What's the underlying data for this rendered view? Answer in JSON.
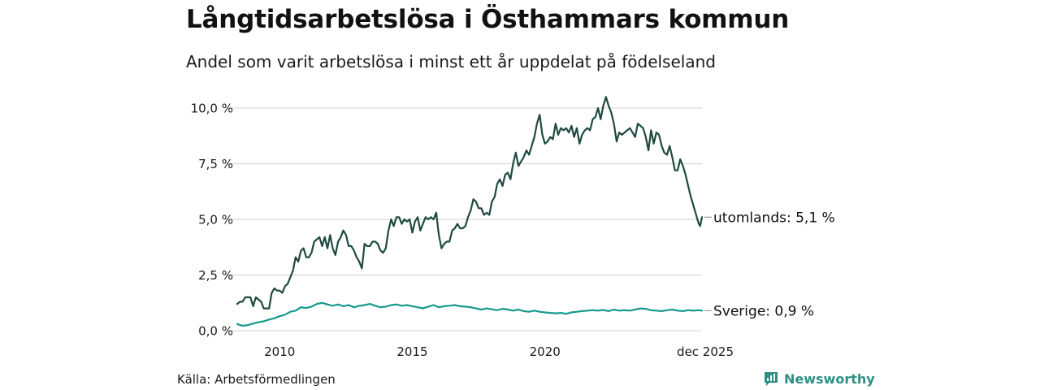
{
  "header": {
    "title": "Långtidsarbetslösa i Östhammars kommun",
    "subtitle": "Andel som varit arbetslösa i minst ett år uppdelat på födelseland"
  },
  "footer": {
    "source": "Källa: Arbetsförmedlingen",
    "brand": "Newsworthy"
  },
  "colors": {
    "series_utomlands": "#1f4a3f",
    "series_sverige": "#159a8c",
    "grid": "#d9d9d9",
    "brand": "#2f8f83"
  },
  "chart_data": {
    "type": "line",
    "title": "Långtidsarbetslösa i Östhammars kommun",
    "subtitle": "Andel som varit arbetslösa i minst ett år uppdelat på födelseland",
    "xlabel": "",
    "ylabel": "",
    "xlim": [
      2008.4,
      2025.92
    ],
    "ylim": [
      0,
      10.7
    ],
    "grid": true,
    "y_ticks": [
      {
        "value": 0,
        "label": "0,0 %"
      },
      {
        "value": 2.5,
        "label": "2,5 %"
      },
      {
        "value": 5,
        "label": "5,0 %"
      },
      {
        "value": 7.5,
        "label": "7,5 %"
      },
      {
        "value": 10,
        "label": "10,0 %"
      }
    ],
    "x_ticks": [
      {
        "value": 2010,
        "label": "2010"
      },
      {
        "value": 2015,
        "label": "2015"
      },
      {
        "value": 2020,
        "label": "2020"
      },
      {
        "value": 2025.92,
        "label": "dec 2025"
      }
    ],
    "series": [
      {
        "name": "utomlands",
        "end_label": "utomlands: 5,1 %",
        "points": [
          [
            2008.4,
            1.2
          ],
          [
            2008.5,
            1.3
          ],
          [
            2008.6,
            1.3
          ],
          [
            2008.7,
            1.5
          ],
          [
            2008.8,
            1.5
          ],
          [
            2008.9,
            1.5
          ],
          [
            2009.0,
            1.1
          ],
          [
            2009.1,
            1.5
          ],
          [
            2009.2,
            1.4
          ],
          [
            2009.3,
            1.3
          ],
          [
            2009.4,
            1.0
          ],
          [
            2009.5,
            1.0
          ],
          [
            2009.6,
            1.0
          ],
          [
            2009.7,
            1.7
          ],
          [
            2009.8,
            1.9
          ],
          [
            2009.9,
            1.8
          ],
          [
            2010.0,
            1.8
          ],
          [
            2010.1,
            1.7
          ],
          [
            2010.2,
            2.0
          ],
          [
            2010.3,
            2.1
          ],
          [
            2010.4,
            2.4
          ],
          [
            2010.5,
            2.7
          ],
          [
            2010.6,
            3.3
          ],
          [
            2010.7,
            3.1
          ],
          [
            2010.8,
            3.6
          ],
          [
            2010.9,
            3.7
          ],
          [
            2011.0,
            3.3
          ],
          [
            2011.1,
            3.3
          ],
          [
            2011.2,
            3.5
          ],
          [
            2011.3,
            4.0
          ],
          [
            2011.4,
            4.1
          ],
          [
            2011.5,
            4.2
          ],
          [
            2011.6,
            3.8
          ],
          [
            2011.7,
            4.2
          ],
          [
            2011.8,
            3.7
          ],
          [
            2011.9,
            4.3
          ],
          [
            2012.0,
            3.7
          ],
          [
            2012.1,
            3.4
          ],
          [
            2012.2,
            4.0
          ],
          [
            2012.3,
            4.2
          ],
          [
            2012.4,
            4.5
          ],
          [
            2012.5,
            4.3
          ],
          [
            2012.6,
            3.8
          ],
          [
            2012.7,
            3.8
          ],
          [
            2012.8,
            3.6
          ],
          [
            2012.9,
            3.3
          ],
          [
            2013.0,
            3.1
          ],
          [
            2013.1,
            2.8
          ],
          [
            2013.2,
            3.9
          ],
          [
            2013.3,
            3.8
          ],
          [
            2013.4,
            3.8
          ],
          [
            2013.5,
            4.0
          ],
          [
            2013.6,
            4.0
          ],
          [
            2013.7,
            3.9
          ],
          [
            2013.8,
            3.6
          ],
          [
            2013.9,
            3.5
          ],
          [
            2014.0,
            3.7
          ],
          [
            2014.1,
            4.5
          ],
          [
            2014.2,
            5.0
          ],
          [
            2014.3,
            4.7
          ],
          [
            2014.4,
            5.1
          ],
          [
            2014.5,
            5.1
          ],
          [
            2014.6,
            4.8
          ],
          [
            2014.7,
            5.0
          ],
          [
            2014.8,
            4.9
          ],
          [
            2014.9,
            5.0
          ],
          [
            2015.0,
            4.4
          ],
          [
            2015.1,
            4.9
          ],
          [
            2015.2,
            5.1
          ],
          [
            2015.3,
            4.5
          ],
          [
            2015.4,
            4.8
          ],
          [
            2015.5,
            5.1
          ],
          [
            2015.6,
            5.0
          ],
          [
            2015.7,
            5.1
          ],
          [
            2015.8,
            5.0
          ],
          [
            2015.9,
            5.3
          ],
          [
            2016.0,
            4.3
          ],
          [
            2016.1,
            3.7
          ],
          [
            2016.2,
            3.9
          ],
          [
            2016.3,
            4.0
          ],
          [
            2016.4,
            4.0
          ],
          [
            2016.5,
            4.5
          ],
          [
            2016.6,
            4.6
          ],
          [
            2016.7,
            4.8
          ],
          [
            2016.8,
            4.6
          ],
          [
            2016.9,
            4.6
          ],
          [
            2017.0,
            4.7
          ],
          [
            2017.1,
            5.1
          ],
          [
            2017.2,
            5.4
          ],
          [
            2017.3,
            5.9
          ],
          [
            2017.4,
            5.8
          ],
          [
            2017.5,
            5.5
          ],
          [
            2017.6,
            5.5
          ],
          [
            2017.7,
            5.2
          ],
          [
            2017.8,
            5.3
          ],
          [
            2017.9,
            5.2
          ],
          [
            2018.0,
            5.8
          ],
          [
            2018.1,
            6.0
          ],
          [
            2018.2,
            6.6
          ],
          [
            2018.3,
            6.8
          ],
          [
            2018.4,
            6.5
          ],
          [
            2018.5,
            7.0
          ],
          [
            2018.6,
            7.1
          ],
          [
            2018.7,
            6.8
          ],
          [
            2018.8,
            7.5
          ],
          [
            2018.9,
            8.0
          ],
          [
            2019.0,
            7.4
          ],
          [
            2019.1,
            7.6
          ],
          [
            2019.2,
            7.8
          ],
          [
            2019.3,
            8.1
          ],
          [
            2019.4,
            7.9
          ],
          [
            2019.5,
            8.3
          ],
          [
            2019.6,
            8.7
          ],
          [
            2019.7,
            9.3
          ],
          [
            2019.8,
            9.7
          ],
          [
            2019.9,
            8.8
          ],
          [
            2020.0,
            8.4
          ],
          [
            2020.1,
            8.5
          ],
          [
            2020.2,
            8.7
          ],
          [
            2020.3,
            8.6
          ],
          [
            2020.4,
            9.3
          ],
          [
            2020.5,
            8.8
          ],
          [
            2020.6,
            9.1
          ],
          [
            2020.7,
            9.0
          ],
          [
            2020.8,
            9.1
          ],
          [
            2020.9,
            8.9
          ],
          [
            2021.0,
            9.2
          ],
          [
            2021.1,
            8.7
          ],
          [
            2021.2,
            9.1
          ],
          [
            2021.3,
            8.4
          ],
          [
            2021.4,
            8.8
          ],
          [
            2021.5,
            9.0
          ],
          [
            2021.6,
            9.1
          ],
          [
            2021.7,
            9.0
          ],
          [
            2021.8,
            9.5
          ],
          [
            2021.9,
            9.6
          ],
          [
            2022.0,
            10.0
          ],
          [
            2022.1,
            9.5
          ],
          [
            2022.2,
            10.1
          ],
          [
            2022.3,
            10.5
          ],
          [
            2022.4,
            10.1
          ],
          [
            2022.5,
            9.8
          ],
          [
            2022.6,
            9.3
          ],
          [
            2022.7,
            8.5
          ],
          [
            2022.8,
            8.9
          ],
          [
            2022.9,
            8.8
          ],
          [
            2023.0,
            8.9
          ],
          [
            2023.1,
            9.0
          ],
          [
            2023.2,
            9.1
          ],
          [
            2023.3,
            8.9
          ],
          [
            2023.4,
            8.7
          ],
          [
            2023.5,
            9.3
          ],
          [
            2023.6,
            9.2
          ],
          [
            2023.7,
            9.1
          ],
          [
            2023.8,
            8.7
          ],
          [
            2023.9,
            8.1
          ],
          [
            2024.0,
            9.0
          ],
          [
            2024.1,
            8.4
          ],
          [
            2024.2,
            8.9
          ],
          [
            2024.3,
            8.8
          ],
          [
            2024.4,
            8.3
          ],
          [
            2024.5,
            8.0
          ],
          [
            2024.6,
            7.9
          ],
          [
            2024.7,
            8.3
          ],
          [
            2024.8,
            7.8
          ],
          [
            2024.9,
            7.2
          ],
          [
            2025.0,
            7.2
          ],
          [
            2025.1,
            7.7
          ],
          [
            2025.2,
            7.4
          ],
          [
            2025.3,
            7.0
          ],
          [
            2025.4,
            6.5
          ],
          [
            2025.5,
            6.0
          ],
          [
            2025.6,
            5.6
          ],
          [
            2025.7,
            5.2
          ],
          [
            2025.75,
            5.0
          ],
          [
            2025.8,
            4.8
          ],
          [
            2025.85,
            4.7
          ],
          [
            2025.92,
            5.1
          ]
        ]
      },
      {
        "name": "Sverige",
        "end_label": "Sverige: 0,9 %",
        "points": [
          [
            2008.4,
            0.3
          ],
          [
            2008.6,
            0.22
          ],
          [
            2008.8,
            0.25
          ],
          [
            2009.0,
            0.32
          ],
          [
            2009.2,
            0.38
          ],
          [
            2009.4,
            0.42
          ],
          [
            2009.6,
            0.5
          ],
          [
            2009.8,
            0.56
          ],
          [
            2010.0,
            0.65
          ],
          [
            2010.2,
            0.72
          ],
          [
            2010.4,
            0.85
          ],
          [
            2010.6,
            0.9
          ],
          [
            2010.8,
            1.05
          ],
          [
            2011.0,
            1.02
          ],
          [
            2011.2,
            1.08
          ],
          [
            2011.4,
            1.2
          ],
          [
            2011.6,
            1.25
          ],
          [
            2011.8,
            1.18
          ],
          [
            2012.0,
            1.12
          ],
          [
            2012.2,
            1.18
          ],
          [
            2012.4,
            1.1
          ],
          [
            2012.6,
            1.15
          ],
          [
            2012.8,
            1.05
          ],
          [
            2013.0,
            1.12
          ],
          [
            2013.2,
            1.15
          ],
          [
            2013.4,
            1.2
          ],
          [
            2013.6,
            1.12
          ],
          [
            2013.8,
            1.05
          ],
          [
            2014.0,
            1.08
          ],
          [
            2014.2,
            1.15
          ],
          [
            2014.4,
            1.18
          ],
          [
            2014.6,
            1.12
          ],
          [
            2014.8,
            1.15
          ],
          [
            2015.0,
            1.1
          ],
          [
            2015.2,
            1.05
          ],
          [
            2015.4,
            1.0
          ],
          [
            2015.6,
            1.08
          ],
          [
            2015.8,
            1.15
          ],
          [
            2016.0,
            1.05
          ],
          [
            2016.2,
            1.1
          ],
          [
            2016.4,
            1.12
          ],
          [
            2016.6,
            1.15
          ],
          [
            2016.8,
            1.1
          ],
          [
            2017.0,
            1.08
          ],
          [
            2017.2,
            1.05
          ],
          [
            2017.4,
            1.0
          ],
          [
            2017.6,
            0.95
          ],
          [
            2017.8,
            1.0
          ],
          [
            2018.0,
            0.96
          ],
          [
            2018.2,
            0.92
          ],
          [
            2018.4,
            0.98
          ],
          [
            2018.6,
            0.95
          ],
          [
            2018.8,
            0.9
          ],
          [
            2019.0,
            0.95
          ],
          [
            2019.2,
            0.88
          ],
          [
            2019.4,
            0.85
          ],
          [
            2019.6,
            0.9
          ],
          [
            2019.8,
            0.85
          ],
          [
            2020.0,
            0.82
          ],
          [
            2020.2,
            0.8
          ],
          [
            2020.4,
            0.78
          ],
          [
            2020.6,
            0.8
          ],
          [
            2020.8,
            0.76
          ],
          [
            2021.0,
            0.82
          ],
          [
            2021.2,
            0.85
          ],
          [
            2021.4,
            0.88
          ],
          [
            2021.6,
            0.9
          ],
          [
            2021.8,
            0.92
          ],
          [
            2022.0,
            0.9
          ],
          [
            2022.2,
            0.93
          ],
          [
            2022.4,
            0.88
          ],
          [
            2022.6,
            0.95
          ],
          [
            2022.8,
            0.9
          ],
          [
            2023.0,
            0.92
          ],
          [
            2023.2,
            0.9
          ],
          [
            2023.4,
            0.95
          ],
          [
            2023.6,
            1.0
          ],
          [
            2023.8,
            0.98
          ],
          [
            2024.0,
            0.92
          ],
          [
            2024.2,
            0.9
          ],
          [
            2024.4,
            0.88
          ],
          [
            2024.6,
            0.92
          ],
          [
            2024.8,
            0.95
          ],
          [
            2025.0,
            0.9
          ],
          [
            2025.2,
            0.88
          ],
          [
            2025.4,
            0.92
          ],
          [
            2025.6,
            0.9
          ],
          [
            2025.8,
            0.92
          ],
          [
            2025.92,
            0.9
          ]
        ]
      }
    ]
  }
}
